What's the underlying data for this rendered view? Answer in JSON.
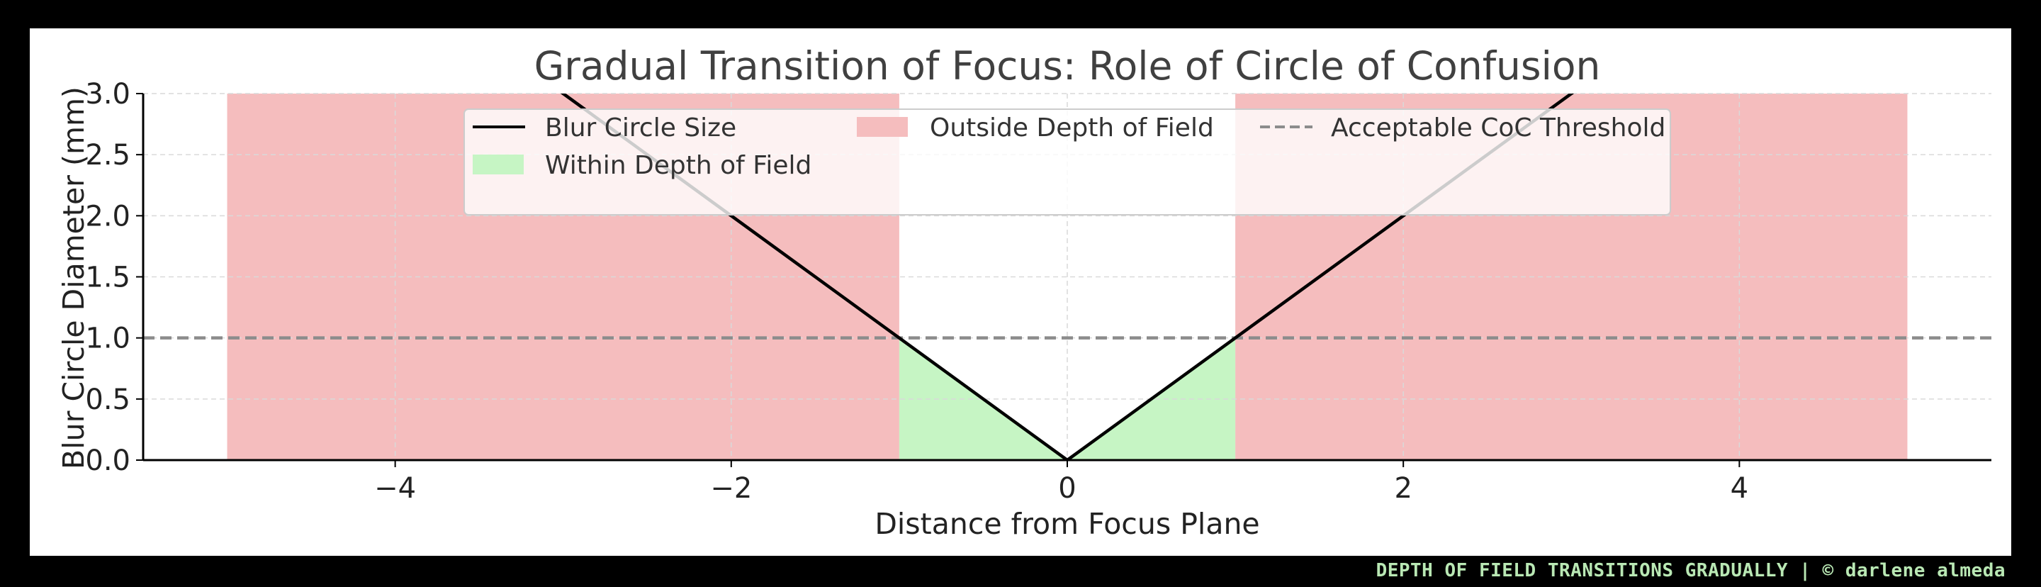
{
  "footer": {
    "caption": "DEPTH OF FIELD TRANSITIONS GRADUALLY | © darlene almeda"
  },
  "colors": {
    "background": "#ffffff",
    "frame": "#000000",
    "inside_fill": "#c6f5c4",
    "outside_fill": "#f5bdbe",
    "curve": "#000000",
    "threshold": "#8c8c8c",
    "grid": "#d9d9d9",
    "title_text": "#404040",
    "footer_text": "#b9e8b4"
  },
  "chart_data": {
    "type": "line",
    "title": "Gradual Transition of Focus: Role of Circle of Confusion",
    "xlabel": "Distance from Focus Plane",
    "ylabel": "Blur Circle Diameter (mm)",
    "xlim": [
      -5.5,
      5.5
    ],
    "ylim": [
      0,
      3.0
    ],
    "xticks": [
      -4,
      -2,
      0,
      2,
      4
    ],
    "xtick_labels": [
      "−4",
      "−2",
      "0",
      "2",
      "4"
    ],
    "yticks": [
      0.0,
      0.5,
      1.0,
      1.5,
      2.0,
      2.5,
      3.0
    ],
    "ytick_labels": [
      "0.0",
      "0.5",
      "1.0",
      "1.5",
      "2.0",
      "2.5",
      "3.0"
    ],
    "grid": true,
    "legend_position": "top-center",
    "series": [
      {
        "name": "Blur Circle Size",
        "kind": "line",
        "x": [
          -5,
          -3,
          -1,
          0,
          1,
          3,
          5
        ],
        "y": [
          5,
          3,
          1,
          0,
          1,
          3,
          5
        ]
      },
      {
        "name": "Within Depth of Field",
        "kind": "fill",
        "x": [
          -1,
          0,
          1
        ],
        "y": [
          1,
          0,
          1
        ]
      },
      {
        "name": "Outside Depth of Field",
        "kind": "fill",
        "ranges": [
          [
            -5,
            -1
          ],
          [
            1,
            5
          ]
        ]
      },
      {
        "name": "Acceptable CoC Threshold",
        "kind": "hline",
        "y": 1.0
      }
    ]
  }
}
